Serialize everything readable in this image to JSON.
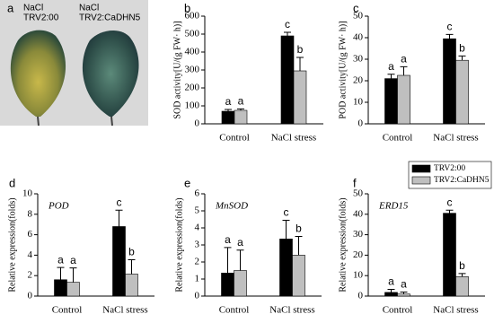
{
  "photo_panel": {
    "panel_label": "a",
    "captions": [
      [
        "NaCl",
        "TRV2:00"
      ],
      [
        "NaCl",
        "TRV2:CaDHN5"
      ]
    ]
  },
  "chart_data": [
    {
      "type": "bar",
      "panel_label": "b",
      "ylabel": "SOD activity[U/(g FW· h)]",
      "categories": [
        "Control",
        "NaCl stress"
      ],
      "series": [
        {
          "color": "#000000",
          "values": [
            70,
            490
          ],
          "errors": [
            10,
            20
          ],
          "letters": [
            "a",
            "c"
          ]
        },
        {
          "color": "#bfbfbf",
          "values": [
            75,
            295
          ],
          "errors": [
            8,
            75
          ],
          "letters": [
            "a",
            "b"
          ]
        }
      ],
      "ylim": [
        0,
        600
      ],
      "yticks": [
        0,
        100,
        200,
        300,
        400,
        500,
        600
      ],
      "legend": false
    },
    {
      "type": "bar",
      "panel_label": "c",
      "ylabel": "POD activity[U/(g FW· h)]",
      "categories": [
        "Control",
        "NaCl stress"
      ],
      "series": [
        {
          "color": "#000000",
          "values": [
            21,
            39.5
          ],
          "errors": [
            2,
            2
          ],
          "letters": [
            "a",
            "c"
          ]
        },
        {
          "color": "#bfbfbf",
          "values": [
            22.5,
            29.5
          ],
          "errors": [
            4,
            2
          ],
          "letters": [
            "a",
            "b"
          ]
        }
      ],
      "ylim": [
        0,
        50
      ],
      "yticks": [
        0,
        10,
        20,
        30,
        40,
        50
      ],
      "legend": false
    },
    {
      "type": "bar",
      "panel_label": "d",
      "ylabel": "Relative expression(folds)",
      "annotation": "POD",
      "categories": [
        "Control",
        "NaCl stress"
      ],
      "series": [
        {
          "color": "#000000",
          "values": [
            1.6,
            6.8
          ],
          "errors": [
            1.2,
            1.6
          ],
          "letters": [
            "a",
            "c"
          ]
        },
        {
          "color": "#bfbfbf",
          "values": [
            1.35,
            2.15
          ],
          "errors": [
            1.4,
            1.4
          ],
          "letters": [
            "a",
            "b"
          ]
        }
      ],
      "ylim": [
        0,
        10
      ],
      "yticks": [
        0,
        2,
        4,
        6,
        8,
        10
      ],
      "legend": false
    },
    {
      "type": "bar",
      "panel_label": "e",
      "ylabel": "Relative expression(folds)",
      "annotation": "MnSOD",
      "categories": [
        "Control",
        "NaCl stress"
      ],
      "series": [
        {
          "color": "#000000",
          "values": [
            1.35,
            3.35
          ],
          "errors": [
            1.5,
            1.1
          ],
          "letters": [
            "a",
            "c"
          ]
        },
        {
          "color": "#bfbfbf",
          "values": [
            1.5,
            2.4
          ],
          "errors": [
            1.2,
            1.1
          ],
          "letters": [
            "a",
            "b"
          ]
        }
      ],
      "ylim": [
        0,
        6
      ],
      "yticks": [
        0,
        1,
        2,
        3,
        4,
        5,
        6
      ],
      "legend": false
    },
    {
      "type": "bar",
      "panel_label": "f",
      "ylabel": "Relative expression(folds)",
      "annotation": "ERD15",
      "categories": [
        "Control",
        "NaCl stress"
      ],
      "series": [
        {
          "name": "TRV2:00",
          "color": "#000000",
          "values": [
            1.8,
            40.5
          ],
          "errors": [
            1.5,
            1.5
          ],
          "letters": [
            "a",
            "c"
          ]
        },
        {
          "name": "TRV2:CaDHN5",
          "color": "#bfbfbf",
          "values": [
            1.0,
            9.5
          ],
          "errors": [
            1,
            1.5
          ],
          "letters": [
            "a",
            "b"
          ]
        }
      ],
      "ylim": [
        0,
        50
      ],
      "yticks": [
        0,
        10,
        20,
        30,
        40,
        50
      ],
      "legend": true
    }
  ]
}
